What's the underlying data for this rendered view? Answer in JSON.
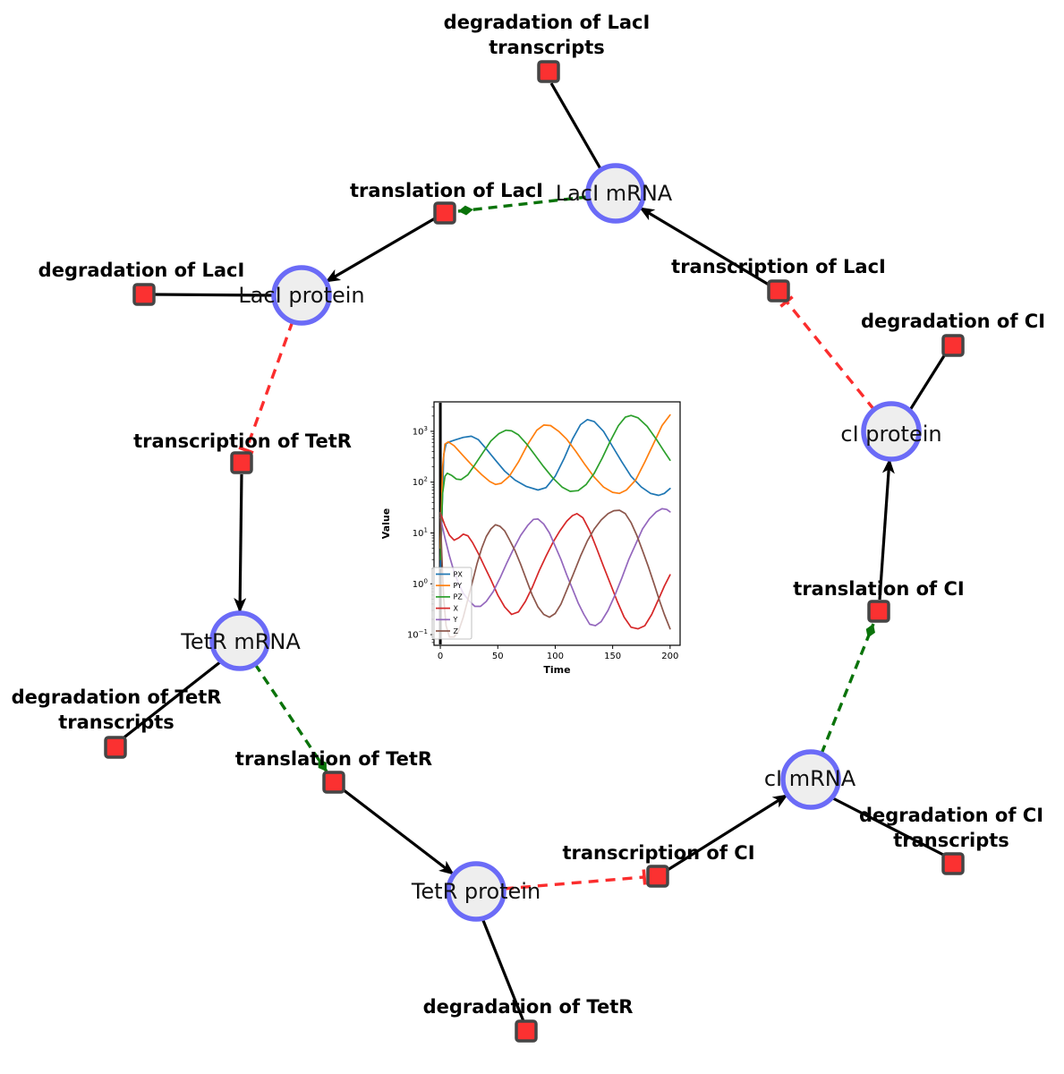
{
  "figure": {
    "background": "#ffffff"
  },
  "colors": {
    "species_fill": "#eeeeee",
    "species_stroke": "#6b6bf7",
    "reaction_fill": "#fb3131",
    "reaction_stroke": "#454545",
    "activation_edge_green": "#0a730a",
    "inhibition_edge_red": "#fb2d2d",
    "edge_black": "#000000"
  },
  "network": {
    "species": [
      {
        "label": "LacI mRNA"
      },
      {
        "label": "LacI protein"
      },
      {
        "label": "TetR mRNA"
      },
      {
        "label": "TetR protein"
      },
      {
        "label": "cI mRNA"
      },
      {
        "label": "cI protein"
      }
    ],
    "reactions": [
      {
        "label": "degradation of LacI transcripts",
        "lines": [
          "degradation of LacI",
          "transcripts"
        ]
      },
      {
        "label": "translation of LacI",
        "lines": [
          "translation of LacI"
        ]
      },
      {
        "label": "degradation of LacI",
        "lines": [
          "degradation of LacI"
        ]
      },
      {
        "label": "transcription of TetR",
        "lines": [
          "transcription of TetR"
        ]
      },
      {
        "label": "degradation of TetR transcripts",
        "lines": [
          "degradation of TetR",
          "transcripts"
        ]
      },
      {
        "label": "translation of TetR",
        "lines": [
          "translation of TetR"
        ]
      },
      {
        "label": "degradation of TetR",
        "lines": [
          "degradation of TetR"
        ]
      },
      {
        "label": "transcription of CI",
        "lines": [
          "transcription of CI"
        ]
      },
      {
        "label": "degradation of CI transcripts",
        "lines": [
          "degradation of CI",
          "transcripts"
        ]
      },
      {
        "label": "translation of CI",
        "lines": [
          "translation of CI"
        ]
      },
      {
        "label": "degradation of CI",
        "lines": [
          "degradation of CI"
        ]
      },
      {
        "label": "transcription of LacI",
        "lines": [
          "transcription of LacI"
        ]
      }
    ]
  },
  "chart_data": {
    "type": "line",
    "title": "",
    "xlabel": "Time",
    "ylabel": "Value",
    "y_scale": "log",
    "grid": false,
    "legend_position": "lower left",
    "x_ticks": [
      0,
      50,
      100,
      150,
      200
    ],
    "y_tick_exponents": [
      -1,
      0,
      1,
      2,
      3
    ],
    "xlim": [
      -5.5,
      208.7
    ],
    "ylim_log": [
      -1.21,
      3.58
    ],
    "axvline_x": 0,
    "series": [
      {
        "name": "PX",
        "color": "#1f77b4",
        "points": [
          [
            0,
            2
          ],
          [
            3,
            350
          ],
          [
            5,
            570
          ],
          [
            8,
            620
          ],
          [
            13,
            680
          ],
          [
            20,
            760
          ],
          [
            27,
            800
          ],
          [
            33,
            690
          ],
          [
            40,
            450
          ],
          [
            48,
            270
          ],
          [
            56,
            165
          ],
          [
            65,
            110
          ],
          [
            75,
            82
          ],
          [
            85,
            70
          ],
          [
            92,
            78
          ],
          [
            100,
            130
          ],
          [
            108,
            300
          ],
          [
            115,
            700
          ],
          [
            122,
            1350
          ],
          [
            128,
            1700
          ],
          [
            134,
            1550
          ],
          [
            142,
            1000
          ],
          [
            150,
            500
          ],
          [
            158,
            250
          ],
          [
            166,
            130
          ],
          [
            175,
            80
          ],
          [
            183,
            60
          ],
          [
            190,
            55
          ],
          [
            195,
            60
          ],
          [
            200,
            75
          ]
        ]
      },
      {
        "name": "PY",
        "color": "#ff7f0e",
        "points": [
          [
            0,
            5
          ],
          [
            2,
            200
          ],
          [
            4,
            560
          ],
          [
            7,
            620
          ],
          [
            12,
            520
          ],
          [
            20,
            330
          ],
          [
            28,
            210
          ],
          [
            36,
            140
          ],
          [
            43,
            103
          ],
          [
            48,
            90
          ],
          [
            53,
            95
          ],
          [
            60,
            130
          ],
          [
            68,
            250
          ],
          [
            76,
            550
          ],
          [
            84,
            1050
          ],
          [
            90,
            1330
          ],
          [
            96,
            1300
          ],
          [
            103,
            1000
          ],
          [
            110,
            700
          ],
          [
            118,
            400
          ],
          [
            126,
            220
          ],
          [
            134,
            125
          ],
          [
            142,
            80
          ],
          [
            150,
            63
          ],
          [
            156,
            60
          ],
          [
            162,
            70
          ],
          [
            170,
            110
          ],
          [
            178,
            250
          ],
          [
            186,
            600
          ],
          [
            193,
            1300
          ],
          [
            200,
            2100
          ]
        ]
      },
      {
        "name": "PZ",
        "color": "#2ca02c",
        "points": [
          [
            0,
            3
          ],
          [
            2,
            60
          ],
          [
            4,
            130
          ],
          [
            6,
            150
          ],
          [
            10,
            135
          ],
          [
            14,
            115
          ],
          [
            18,
            112
          ],
          [
            24,
            140
          ],
          [
            30,
            220
          ],
          [
            37,
            380
          ],
          [
            44,
            650
          ],
          [
            51,
            900
          ],
          [
            57,
            1050
          ],
          [
            62,
            1020
          ],
          [
            68,
            850
          ],
          [
            75,
            570
          ],
          [
            82,
            350
          ],
          [
            90,
            200
          ],
          [
            98,
            120
          ],
          [
            106,
            80
          ],
          [
            113,
            66
          ],
          [
            120,
            68
          ],
          [
            127,
            90
          ],
          [
            134,
            150
          ],
          [
            141,
            300
          ],
          [
            148,
            650
          ],
          [
            155,
            1300
          ],
          [
            161,
            1900
          ],
          [
            166,
            2050
          ],
          [
            172,
            1850
          ],
          [
            180,
            1250
          ],
          [
            188,
            700
          ],
          [
            194,
            430
          ],
          [
            200,
            270
          ]
        ]
      },
      {
        "name": "X",
        "color": "#d62728",
        "points": [
          [
            0,
            25
          ],
          [
            4,
            14
          ],
          [
            8,
            9
          ],
          [
            12,
            7.2
          ],
          [
            16,
            8
          ],
          [
            20,
            9.5
          ],
          [
            24,
            8.8
          ],
          [
            28,
            6.5
          ],
          [
            33,
            4
          ],
          [
            38,
            2.3
          ],
          [
            44,
            1.2
          ],
          [
            50,
            0.6
          ],
          [
            56,
            0.35
          ],
          [
            62,
            0.25
          ],
          [
            68,
            0.28
          ],
          [
            74,
            0.45
          ],
          [
            80,
            0.85
          ],
          [
            86,
            1.8
          ],
          [
            92,
            3.5
          ],
          [
            98,
            6.5
          ],
          [
            104,
            11
          ],
          [
            110,
            17
          ],
          [
            115,
            22
          ],
          [
            119,
            24
          ],
          [
            124,
            20
          ],
          [
            130,
            11
          ],
          [
            136,
            5
          ],
          [
            142,
            2.2
          ],
          [
            148,
            1
          ],
          [
            154,
            0.45
          ],
          [
            160,
            0.22
          ],
          [
            166,
            0.14
          ],
          [
            172,
            0.13
          ],
          [
            178,
            0.15
          ],
          [
            184,
            0.25
          ],
          [
            190,
            0.5
          ],
          [
            195,
            0.9
          ],
          [
            200,
            1.5
          ]
        ]
      },
      {
        "name": "Y",
        "color": "#9467bd",
        "points": [
          [
            0,
            20
          ],
          [
            4,
            8
          ],
          [
            8,
            3.5
          ],
          [
            12,
            1.7
          ],
          [
            16,
            1
          ],
          [
            20,
            0.65
          ],
          [
            25,
            0.46
          ],
          [
            30,
            0.36
          ],
          [
            35,
            0.36
          ],
          [
            40,
            0.45
          ],
          [
            46,
            0.7
          ],
          [
            52,
            1.3
          ],
          [
            58,
            2.6
          ],
          [
            64,
            5
          ],
          [
            70,
            9
          ],
          [
            76,
            14
          ],
          [
            81,
            18.5
          ],
          [
            85,
            18.8
          ],
          [
            90,
            15
          ],
          [
            95,
            10
          ],
          [
            100,
            5.5
          ],
          [
            105,
            3
          ],
          [
            110,
            1.5
          ],
          [
            115,
            0.8
          ],
          [
            120,
            0.42
          ],
          [
            125,
            0.25
          ],
          [
            130,
            0.16
          ],
          [
            135,
            0.15
          ],
          [
            140,
            0.18
          ],
          [
            146,
            0.3
          ],
          [
            152,
            0.6
          ],
          [
            158,
            1.3
          ],
          [
            164,
            3
          ],
          [
            170,
            6
          ],
          [
            176,
            12
          ],
          [
            182,
            19
          ],
          [
            188,
            26
          ],
          [
            193,
            30
          ],
          [
            197,
            29
          ],
          [
            200,
            26
          ]
        ]
      },
      {
        "name": "Z",
        "color": "#8c564b",
        "points": [
          [
            0,
            25
          ],
          [
            1,
            6
          ],
          [
            2,
            1.5
          ],
          [
            3,
            0.5
          ],
          [
            5,
            0.15
          ],
          [
            8,
            0.09
          ],
          [
            12,
            0.09
          ],
          [
            16,
            0.12
          ],
          [
            20,
            0.22
          ],
          [
            24,
            0.5
          ],
          [
            28,
            1.1
          ],
          [
            32,
            2.5
          ],
          [
            36,
            5
          ],
          [
            40,
            8.5
          ],
          [
            44,
            12
          ],
          [
            48,
            14.5
          ],
          [
            52,
            13.5
          ],
          [
            56,
            11
          ],
          [
            60,
            7.5
          ],
          [
            65,
            4.5
          ],
          [
            70,
            2.4
          ],
          [
            75,
            1.2
          ],
          [
            80,
            0.6
          ],
          [
            85,
            0.35
          ],
          [
            90,
            0.25
          ],
          [
            95,
            0.22
          ],
          [
            100,
            0.26
          ],
          [
            105,
            0.4
          ],
          [
            110,
            0.75
          ],
          [
            116,
            1.6
          ],
          [
            122,
            3.5
          ],
          [
            128,
            7
          ],
          [
            134,
            12
          ],
          [
            140,
            18
          ],
          [
            146,
            24
          ],
          [
            151,
            27.5
          ],
          [
            156,
            28
          ],
          [
            161,
            24
          ],
          [
            166,
            16
          ],
          [
            171,
            9
          ],
          [
            176,
            4.5
          ],
          [
            181,
            2.2
          ],
          [
            186,
            1
          ],
          [
            191,
            0.45
          ],
          [
            195,
            0.25
          ],
          [
            200,
            0.13
          ]
        ]
      }
    ]
  }
}
